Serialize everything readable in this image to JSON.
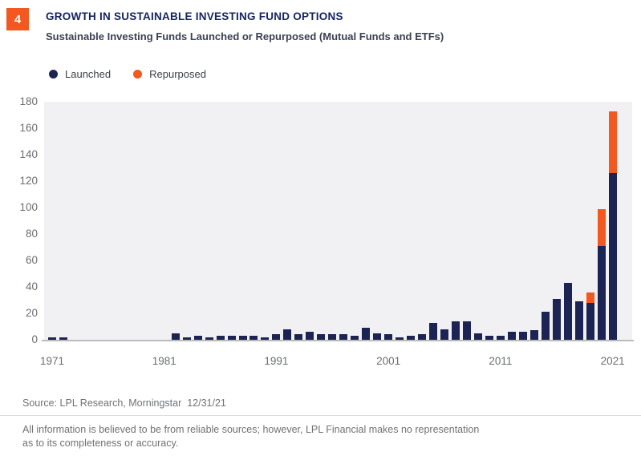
{
  "badge": {
    "number": "4",
    "color": "#f2581f"
  },
  "header": {
    "title": "GROWTH IN SUSTAINABLE INVESTING FUND OPTIONS",
    "subtitle": "Sustainable Investing Funds Launched or Repurposed (Mutual Funds and ETFs)"
  },
  "legend": [
    {
      "label": "Launched",
      "color": "#1b2452"
    },
    {
      "label": "Repurposed",
      "color": "#f2581f"
    }
  ],
  "chart_data": {
    "type": "bar",
    "stacked": true,
    "title": "Sustainable Investing Funds Launched or Repurposed (Mutual Funds and ETFs)",
    "xlabel": "",
    "ylabel": "",
    "ylim": [
      0,
      180
    ],
    "ytick_interval": 20,
    "grid": false,
    "legend_position": "top-left",
    "plot_background": "#f1f1f3",
    "axis_line_color": "#b9bbbd",
    "xticks": [
      1971,
      1981,
      1991,
      2001,
      2011,
      2021
    ],
    "x": [
      1971,
      1972,
      1973,
      1974,
      1975,
      1976,
      1977,
      1978,
      1979,
      1980,
      1981,
      1982,
      1983,
      1984,
      1985,
      1986,
      1987,
      1988,
      1989,
      1990,
      1991,
      1992,
      1993,
      1994,
      1995,
      1996,
      1997,
      1998,
      1999,
      2000,
      2001,
      2002,
      2003,
      2004,
      2005,
      2006,
      2007,
      2008,
      2009,
      2010,
      2011,
      2012,
      2013,
      2014,
      2015,
      2016,
      2017,
      2018,
      2019,
      2020,
      2021
    ],
    "series": [
      {
        "name": "Launched",
        "color": "#1b2452",
        "values": [
          2,
          2,
          0,
          0,
          0,
          0,
          0,
          0,
          0,
          0,
          0,
          5,
          2,
          3,
          2,
          3,
          3,
          3,
          3,
          2,
          4,
          8,
          4,
          6,
          4,
          4,
          4,
          3,
          9,
          5,
          4,
          2,
          3,
          4,
          13,
          8,
          14,
          14,
          5,
          3,
          3,
          6,
          6,
          7,
          21,
          31,
          43,
          29,
          28,
          71,
          126
        ]
      },
      {
        "name": "Repurposed",
        "color": "#f2581f",
        "values": [
          0,
          0,
          0,
          0,
          0,
          0,
          0,
          0,
          0,
          0,
          0,
          0,
          0,
          0,
          0,
          0,
          0,
          0,
          0,
          0,
          0,
          0,
          0,
          0,
          0,
          0,
          0,
          0,
          0,
          0,
          0,
          0,
          0,
          0,
          0,
          0,
          0,
          0,
          0,
          0,
          0,
          0,
          0,
          0,
          0,
          0,
          0,
          0,
          8,
          28,
          47
        ]
      }
    ]
  },
  "footer": {
    "source": "Source: LPL Research, Morningstar  12/31/21",
    "disclaimer": "All information is believed to be from reliable sources; however, LPL Financial makes no representation\nas to its completeness or accuracy."
  }
}
